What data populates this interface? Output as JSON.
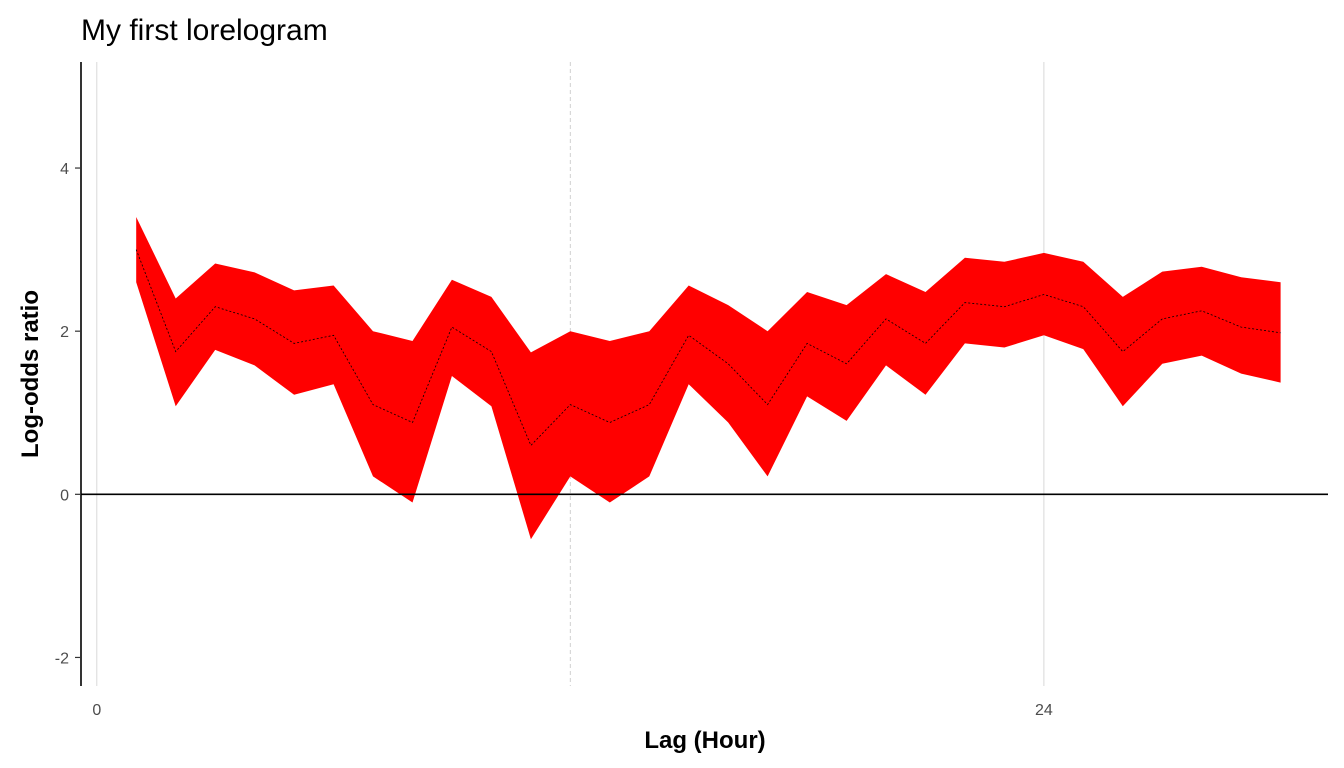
{
  "chart_data": {
    "type": "area",
    "title": "My first lorelogram",
    "xlabel": "Lag (Hour)",
    "ylabel": "Log-odds ratio",
    "xlim": [
      -0.4,
      31.2
    ],
    "ylim": [
      -2.35,
      5.3
    ],
    "x_ticks": [
      0,
      24
    ],
    "x_tick_labels": [
      "0",
      "24"
    ],
    "x_minor_gridline": 12,
    "y_ticks": [
      -2,
      0,
      2,
      4
    ],
    "y_tick_labels": [
      "-2",
      "0",
      "2",
      "4"
    ],
    "reference_line_y": 0,
    "grid": true,
    "legend": "none",
    "fill_color": "#ff0000",
    "line_color": "#000000",
    "x": [
      1,
      2,
      3,
      4,
      5,
      6,
      7,
      8,
      9,
      10,
      11,
      12,
      13,
      14,
      15,
      16,
      17,
      18,
      19,
      20,
      21,
      22,
      23,
      24,
      25,
      26,
      27,
      28,
      29,
      30
    ],
    "series": [
      {
        "estimate": [
          3.0,
          1.75,
          2.3,
          2.15,
          1.85,
          1.95,
          1.1,
          0.88,
          2.05,
          1.75,
          0.6,
          1.1,
          0.88,
          1.1,
          1.95,
          1.6,
          1.1,
          1.85,
          1.6,
          2.15,
          1.85,
          2.35,
          2.3,
          2.45,
          2.3,
          1.75,
          2.15,
          2.25,
          2.05,
          1.98
        ],
        "lower": [
          2.6,
          1.08,
          1.77,
          1.58,
          1.22,
          1.35,
          0.22,
          -0.1,
          1.45,
          1.08,
          -0.55,
          0.22,
          -0.1,
          0.22,
          1.35,
          0.88,
          0.22,
          1.2,
          0.9,
          1.58,
          1.22,
          1.85,
          1.8,
          1.95,
          1.78,
          1.08,
          1.6,
          1.7,
          1.48,
          1.37
        ],
        "upper": [
          3.4,
          2.4,
          2.83,
          2.72,
          2.5,
          2.56,
          2.0,
          1.88,
          2.63,
          2.42,
          1.74,
          2.0,
          1.88,
          2.0,
          2.56,
          2.32,
          2.0,
          2.48,
          2.32,
          2.7,
          2.48,
          2.9,
          2.85,
          2.96,
          2.85,
          2.42,
          2.73,
          2.79,
          2.66,
          2.6
        ]
      }
    ]
  }
}
